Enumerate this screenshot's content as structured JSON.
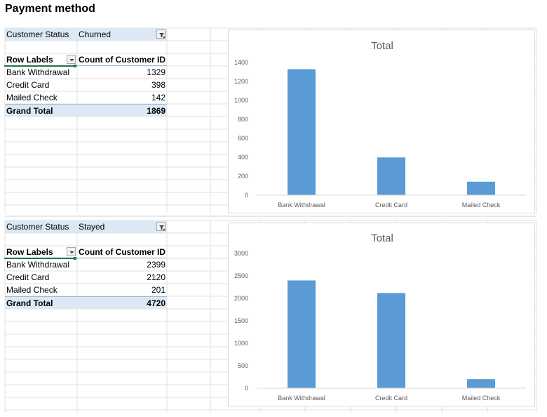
{
  "page_title": "Payment method",
  "colors": {
    "bar": "#5b9bd5",
    "pivot_band": "#dce9f5",
    "selection": "#217346"
  },
  "pivots": [
    {
      "filter_label": "Customer Status",
      "filter_value": "Churned",
      "col_header_1": "Row Labels",
      "col_header_2": "Count of Customer ID",
      "rows": [
        {
          "label": "Bank Withdrawal",
          "value": "1329"
        },
        {
          "label": "Credit Card",
          "value": "398"
        },
        {
          "label": "Mailed Check",
          "value": "142"
        }
      ],
      "total_label": "Grand Total",
      "total_value": "1869"
    },
    {
      "filter_label": "Customer Status",
      "filter_value": "Stayed",
      "col_header_1": "Row Labels",
      "col_header_2": "Count of Customer ID",
      "rows": [
        {
          "label": "Bank Withdrawal",
          "value": "2399"
        },
        {
          "label": "Credit Card",
          "value": "2120"
        },
        {
          "label": "Mailed Check",
          "value": "201"
        }
      ],
      "total_label": "Grand Total",
      "total_value": "4720"
    }
  ],
  "chart_data": [
    {
      "type": "bar",
      "title": "Total",
      "categories": [
        "Bank Withdrawal",
        "Credit Card",
        "Mailed Check"
      ],
      "values": [
        1329,
        398,
        142
      ],
      "ylim": [
        0,
        1400
      ],
      "yticks": [
        0,
        200,
        400,
        600,
        800,
        1000,
        1200,
        1400
      ],
      "grid": false,
      "legend": "none"
    },
    {
      "type": "bar",
      "title": "Total",
      "categories": [
        "Bank Withdrawal",
        "Credit Card",
        "Mailed Check"
      ],
      "values": [
        2399,
        2120,
        201
      ],
      "ylim": [
        0,
        3000
      ],
      "yticks": [
        0,
        500,
        1000,
        1500,
        2000,
        2500,
        3000
      ],
      "grid": false,
      "legend": "none"
    }
  ]
}
